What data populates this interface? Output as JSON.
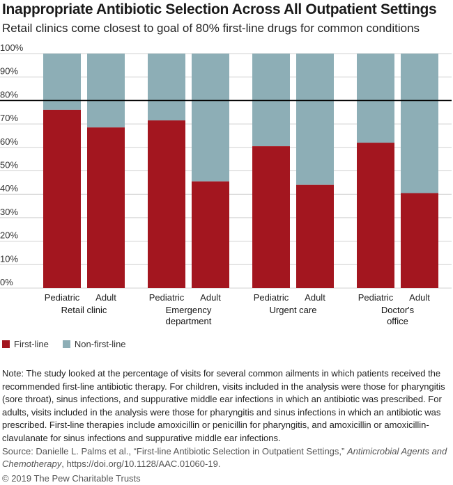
{
  "title": "Inappropriate Antibiotic Selection Across All Outpatient Settings",
  "subtitle": "Retail clinics come closest to goal of 80% first-line drugs for common conditions",
  "colors": {
    "first_line": "#A3161F",
    "non_first_line": "#8DAEB6",
    "goal_line": "#000000"
  },
  "chart_data": {
    "type": "bar",
    "stacked": true,
    "percent_stacked": true,
    "ylim": [
      0,
      100
    ],
    "yticks": [
      "0%",
      "10%",
      "20%",
      "30%",
      "40%",
      "50%",
      "60%",
      "70%",
      "80%",
      "90%",
      "100%"
    ],
    "goal_line": 80,
    "groups": [
      {
        "label": [
          "Retail clinic"
        ],
        "categories": [
          "Pediatric",
          "Adult"
        ]
      },
      {
        "label": [
          "Emergency",
          "department"
        ],
        "categories": [
          "Pediatric",
          "Adult"
        ]
      },
      {
        "label": [
          "Urgent care"
        ],
        "categories": [
          "Pediatric",
          "Adult"
        ]
      },
      {
        "label": [
          "Doctor's",
          "office"
        ],
        "categories": [
          "Pediatric",
          "Adult"
        ]
      }
    ],
    "series": [
      {
        "name": "First-line",
        "values": [
          76,
          68.5,
          71.5,
          45.5,
          60.5,
          44,
          62,
          40.5
        ]
      },
      {
        "name": "Non-first-line",
        "values": [
          24,
          31.5,
          28.5,
          54.5,
          39.5,
          56,
          38,
          59.5
        ]
      }
    ]
  },
  "legend": {
    "first_line": "First-line",
    "non_first_line": "Non-first-line"
  },
  "note": "Note: The study looked at the percentage of visits for several common ailments in which patients received the recommended first-line antibiotic therapy. For children, visits included in the analysis were those for pharyngitis (sore throat), sinus infections, and suppurative middle ear infections in which an antibiotic was prescribed. For adults, visits included in the analysis were those for pharyngitis and sinus infections in which an antibiotic was prescribed. First-line therapies include amoxicillin or penicillin for pharyngitis, and amoxicillin or amoxicillin-clavulanate for sinus infections and suppurative middle ear infections.",
  "source": {
    "prefix": "Source: Danielle L. Palms et al., “First-line Antibiotic Selection in Outpatient Settings,” ",
    "journal": "Antimicrobial Agents and Chemotherapy",
    "suffix": ", https://doi.org/10.1128/AAC.01060-19."
  },
  "copyright": "© 2019 The Pew Charitable Trusts"
}
